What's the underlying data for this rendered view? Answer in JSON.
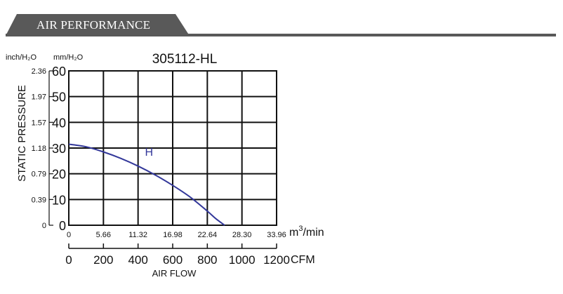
{
  "section": {
    "title": "AIR PERFORMANCE"
  },
  "chart_data": {
    "type": "line",
    "title": "305112-HL",
    "ylabel": "STATIC PRESSURE",
    "y_unit_left": "inch/H₂O",
    "y_unit_right": "mm/H₂O",
    "y_ticks_mm": [
      "60",
      "50",
      "40",
      "30",
      "20",
      "10",
      "0"
    ],
    "y_ticks_inch": [
      "2.36",
      "1.97",
      "1.57",
      "1.18",
      "0.79",
      "0.39",
      "0"
    ],
    "ylim": [
      0,
      60
    ],
    "x_unit_m3": "m³/min",
    "x_ticks_m3": [
      "0",
      "5.66",
      "11.32",
      "16.98",
      "22.64",
      "28.30",
      "33.96"
    ],
    "x_unit_cfm": "CFM",
    "x_ticks_cfm": [
      "0",
      "200",
      "400",
      "600",
      "800",
      "1000",
      "1200"
    ],
    "xlim_cfm": [
      0,
      1200
    ],
    "xlabel": "AIR FLOW",
    "grid": true,
    "series": [
      {
        "name": "H",
        "color": "#33389a",
        "x": [
          0,
          100,
          200,
          300,
          400,
          500,
          600,
          700,
          800,
          850,
          900
        ],
        "y": [
          31.5,
          30.5,
          28.5,
          26.0,
          23.0,
          19.5,
          15.5,
          11.0,
          5.5,
          2.5,
          0
        ]
      }
    ]
  }
}
